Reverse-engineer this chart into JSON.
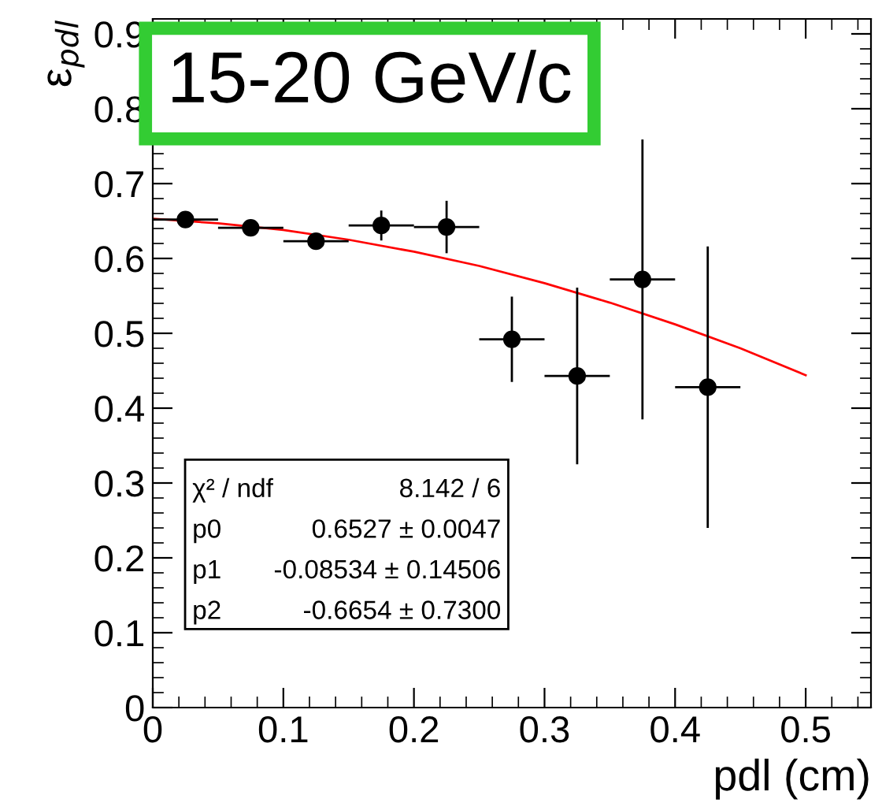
{
  "chart_data": {
    "type": "scatter",
    "xlabel": "pdl (cm)",
    "ylabel": "ε$_{pdl}$",
    "xlim": [
      0,
      0.55
    ],
    "ylim": [
      0,
      0.92
    ],
    "xticks": [
      0,
      0.1,
      0.2,
      0.3,
      0.4,
      0.5
    ],
    "yticks": [
      0,
      0.1,
      0.2,
      0.3,
      0.4,
      0.5,
      0.6,
      0.7,
      0.8,
      0.9
    ],
    "marker": "circle",
    "legend": false,
    "grid": false,
    "annotations": [
      "15-20 GeV/c",
      "χ² / ndf",
      "8.142 / 6",
      "p0",
      "0.6527 ± 0.0047",
      "p1",
      "-0.08534 ± 0.14506",
      "p2",
      "-0.6654 ± 0.7300"
    ],
    "series": [
      {
        "color": "#000000",
        "x": [
          0.025,
          0.075,
          0.125,
          0.175,
          0.225,
          0.275,
          0.325,
          0.375,
          0.425
        ],
        "values": [
          0.652,
          0.641,
          0.623,
          0.644,
          0.642,
          0.492,
          0.443,
          0.572,
          0.428
        ],
        "errors": [
          0.005,
          0.005,
          0.005,
          0.02,
          0.035,
          0.057,
          0.118,
          0.187,
          0.188
        ],
        "xerrors": [
          0.025,
          0.025,
          0.025,
          0.025,
          0.025,
          0.025,
          0.025,
          0.025,
          0.025
        ]
      },
      {
        "type": "line",
        "color": "#ff0000",
        "marker": "none",
        "x": [
          0,
          0.05,
          0.1,
          0.15,
          0.2,
          0.25,
          0.3,
          0.35,
          0.4,
          0.45,
          0.5
        ],
        "values": [
          0.653,
          0.647,
          0.638,
          0.625,
          0.609,
          0.59,
          0.567,
          0.541,
          0.512,
          0.48,
          0.444
        ]
      }
    ]
  }
}
